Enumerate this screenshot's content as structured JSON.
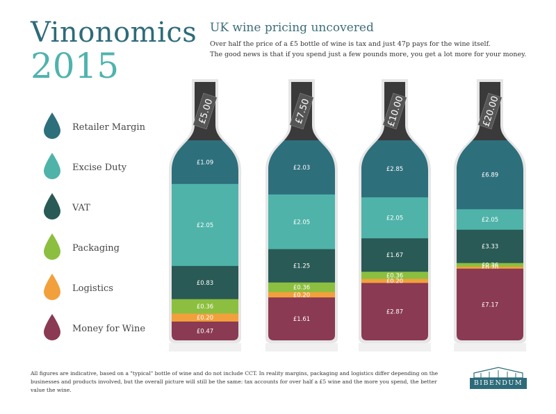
{
  "brand": {
    "line1": "Vinonomics",
    "line2": "2015"
  },
  "headline": "UK wine pricing uncovered",
  "subtext": {
    "line1": "Over half the price of a £5 bottle of wine is tax and just 47p pays for the wine itself.",
    "line2": "The good news is that if you spend just a few pounds more, you get a lot more for your money."
  },
  "colors": {
    "retailer": "#2e6f7c",
    "excise": "#4fb3a9",
    "vat": "#295a55",
    "packaging": "#8cbf3f",
    "logistics": "#f2a03c",
    "wine": "#8a3a52",
    "cork": "#3a3a3a"
  },
  "legend": [
    {
      "label": "Retailer Margin",
      "color": "#2e6f7c"
    },
    {
      "label": "Excise Duty",
      "color": "#4fb3a9"
    },
    {
      "label": "VAT",
      "color": "#295a55"
    },
    {
      "label": "Packaging",
      "color": "#8cbf3f"
    },
    {
      "label": "Logistics",
      "color": "#f2a03c"
    },
    {
      "label": "Money for Wine",
      "color": "#8a3a52"
    }
  ],
  "chart_data": {
    "type": "bar",
    "stacked": true,
    "categories": [
      "£5.00",
      "£7.50",
      "£10.00",
      "£20.00"
    ],
    "series": [
      {
        "name": "Retailer Margin",
        "values": [
          1.09,
          2.03,
          2.85,
          6.89
        ],
        "labels": [
          "£1.09",
          "£2.03",
          "£2.85",
          "£6.89"
        ]
      },
      {
        "name": "Excise Duty",
        "values": [
          2.05,
          2.05,
          2.05,
          2.05
        ],
        "labels": [
          "£2.05",
          "£2.05",
          "£2.05",
          "£2.05"
        ]
      },
      {
        "name": "VAT",
        "values": [
          0.83,
          1.25,
          1.67,
          3.33
        ],
        "labels": [
          "£0.83",
          "£1.25",
          "£1.67",
          "£3.33"
        ]
      },
      {
        "name": "Packaging",
        "values": [
          0.36,
          0.36,
          0.36,
          0.36
        ],
        "labels": [
          "£0.36",
          "£0.36",
          "£0.36",
          "£0.36"
        ]
      },
      {
        "name": "Logistics",
        "values": [
          0.2,
          0.2,
          0.2,
          0.2
        ],
        "labels": [
          "£0.20",
          "£0.20",
          "£0.20",
          "£0.20"
        ]
      },
      {
        "name": "Money for Wine",
        "values": [
          0.47,
          1.61,
          2.87,
          7.17
        ],
        "labels": [
          "£0.47",
          "£1.61",
          "£2.87",
          "£7.17"
        ]
      }
    ]
  },
  "footnote": "All figures are indicative, based on a \"typical\" bottle of wine and do not include CCT. In reality margins, packaging and logistics differ depending on the businesses and products involved, but the overall picture will still be the same: tax accounts for over half a £5 wine and the more you spend, the better value the wine.",
  "logo": {
    "text": "BIBENDUM"
  }
}
